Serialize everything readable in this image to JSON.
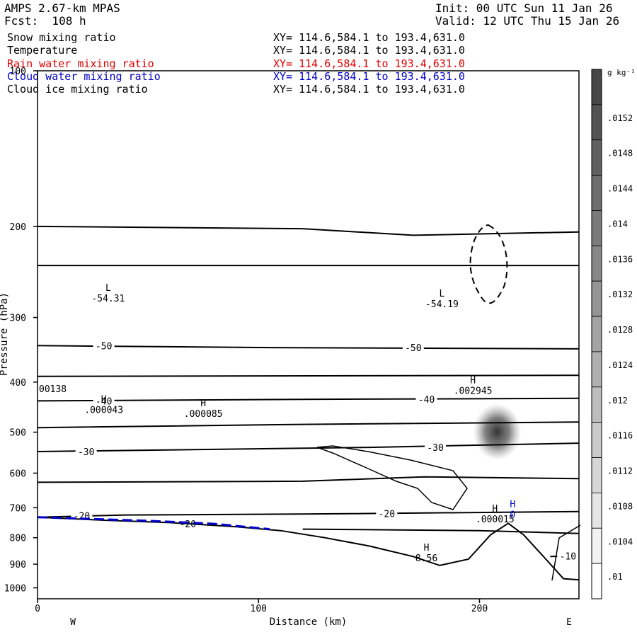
{
  "header": {
    "model": "AMPS 2.67-km MPAS",
    "forecast": "Fcst:  108 h",
    "init": "Init: 00 UTC Sun 11 Jan 26",
    "valid": "Valid: 12 UTC Thu 15 Jan 26"
  },
  "fields": [
    {
      "name": "Snow mixing ratio",
      "xy": "XY= 114.6,584.1 to 193.4,631.0",
      "color": "#000000"
    },
    {
      "name": "Temperature",
      "xy": "XY= 114.6,584.1 to 193.4,631.0",
      "color": "#000000"
    },
    {
      "name": "Rain water mixing ratio",
      "xy": "XY= 114.6,584.1 to 193.4,631.0",
      "color": "#e00000"
    },
    {
      "name": "Cloud water mixing ratio",
      "xy": "XY= 114.6,584.1 to 193.4,631.0",
      "color": "#0000cc"
    },
    {
      "name": "Cloud ice mixing ratio",
      "xy": "XY= 114.6,584.1 to 193.4,631.0",
      "color": "#000000"
    }
  ],
  "chart_data": {
    "type": "cross-section",
    "xlabel": "Distance (km)",
    "ylabel": "Pressure (hPa)",
    "xlim": [
      0,
      245
    ],
    "ylim": [
      100,
      1050
    ],
    "y_log": true,
    "x_ticks": [
      "0",
      "100",
      "200"
    ],
    "x_tick_values": [
      0,
      100,
      200
    ],
    "y_ticks": [
      "100",
      "200",
      "300",
      "400",
      "500",
      "600",
      "700",
      "800",
      "900",
      "1000"
    ],
    "y_tick_values": [
      100,
      200,
      300,
      400,
      500,
      600,
      700,
      800,
      900,
      1000
    ],
    "west_label": "W",
    "east_label": "E",
    "colorbar": {
      "unit": "g kg⁻¹",
      "labels": [
        ".0152",
        ".0148",
        ".0144",
        ".014",
        ".0136",
        ".0132",
        ".0128",
        ".0124",
        ".012",
        ".0116",
        ".0112",
        ".0108",
        ".0104",
        ".01"
      ],
      "values": [
        0.0152,
        0.0148,
        0.0144,
        0.014,
        0.0136,
        0.0132,
        0.0128,
        0.0124,
        0.012,
        0.0116,
        0.0112,
        0.0108,
        0.0104,
        0.01
      ]
    },
    "temperature_contours": [
      {
        "label": "-50",
        "points": [
          [
            0,
            340
          ],
          [
            100,
            343
          ],
          [
            245,
            345
          ]
        ]
      },
      {
        "label": "-40",
        "points": [
          [
            0,
            435
          ],
          [
            120,
            432
          ],
          [
            245,
            430
          ]
        ]
      },
      {
        "label": "-30",
        "points": [
          [
            0,
            545
          ],
          [
            150,
            535
          ],
          [
            245,
            525
          ]
        ]
      },
      {
        "label": "-20",
        "points": [
          [
            0,
            730
          ],
          [
            40,
            723
          ],
          [
            120,
            720
          ],
          [
            245,
            712
          ]
        ]
      },
      {
        "label": "-10",
        "points": [
          [
            232,
            870
          ],
          [
            245,
            868
          ]
        ]
      },
      {
        "label": "",
        "points": [
          [
            0,
            200
          ],
          [
            120,
            202
          ],
          [
            170,
            208
          ],
          [
            245,
            205
          ]
        ]
      },
      {
        "label": "",
        "points": [
          [
            0,
            238
          ],
          [
            245,
            238
          ]
        ]
      },
      {
        "label": "",
        "points": [
          [
            0,
            390
          ],
          [
            245,
            388
          ]
        ]
      },
      {
        "label": "",
        "points": [
          [
            0,
            490
          ],
          [
            120,
            483
          ],
          [
            245,
            478
          ]
        ]
      },
      {
        "label": "",
        "points": [
          [
            0,
            625
          ],
          [
            120,
            622
          ],
          [
            175,
            610
          ],
          [
            245,
            615
          ]
        ]
      },
      {
        "label": "",
        "points": [
          [
            120,
            770
          ],
          [
            200,
            775
          ],
          [
            245,
            785
          ]
        ]
      }
    ],
    "terrain": [
      [
        0,
        730
      ],
      [
        30,
        740
      ],
      [
        60,
        748
      ],
      [
        90,
        762
      ],
      [
        110,
        775
      ],
      [
        130,
        800
      ],
      [
        150,
        830
      ],
      [
        170,
        870
      ],
      [
        182,
        905
      ],
      [
        195,
        880
      ],
      [
        205,
        790
      ],
      [
        213,
        750
      ],
      [
        220,
        790
      ],
      [
        230,
        880
      ],
      [
        238,
        960
      ],
      [
        245,
        965
      ]
    ],
    "cloud_water_line": [
      [
        0,
        730
      ],
      [
        20,
        735
      ],
      [
        50,
        742
      ],
      [
        80,
        752
      ],
      [
        105,
        770
      ]
    ],
    "extrema_labels": [
      {
        "kind": "L",
        "value": "-54.31",
        "x": 32,
        "p": 275,
        "color": "#000000"
      },
      {
        "kind": "L",
        "value": "-54.19",
        "x": 183,
        "p": 282,
        "color": "#000000"
      },
      {
        "kind": "H",
        "value": ".002945",
        "x": 197,
        "p": 415,
        "color": "#000000"
      },
      {
        "kind": "H",
        "value": ".000043",
        "x": 30,
        "p": 452,
        "color": "#000000"
      },
      {
        "kind": "H",
        "value": ".000085",
        "x": 75,
        "p": 460,
        "color": "#000000"
      },
      {
        "kind": "H",
        "value": ".000015",
        "x": 207,
        "p": 735,
        "color": "#000000"
      },
      {
        "kind": "H",
        "value": "0",
        "x": 215,
        "p": 720,
        "color": "#0000cc"
      },
      {
        "kind": "H",
        "value": "8.56",
        "x": 176,
        "p": 875,
        "color": "#000000"
      }
    ],
    "left_edge_label": "00138",
    "shaded_max": {
      "x": 208,
      "p": 490,
      "value": 0.0152
    }
  }
}
